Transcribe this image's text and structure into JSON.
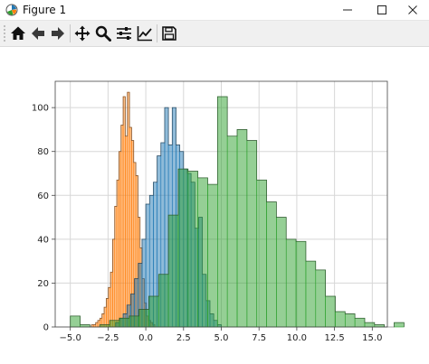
{
  "window": {
    "title": "Figure 1",
    "icons": {
      "app": "matplotlib-icon",
      "minimize": "minimize-icon",
      "maximize": "maximize-icon",
      "close": "close-icon"
    }
  },
  "toolbar": {
    "items": [
      {
        "name": "home-button",
        "icon": "home-icon"
      },
      {
        "name": "back-button",
        "icon": "arrow-left-icon"
      },
      {
        "name": "forward-button",
        "icon": "arrow-right-icon"
      },
      {
        "name": "pan-button",
        "icon": "move-icon"
      },
      {
        "name": "zoom-button",
        "icon": "search-icon"
      },
      {
        "name": "configure-subplots-button",
        "icon": "sliders-icon"
      },
      {
        "name": "edit-axis-button",
        "icon": "line-chart-icon"
      },
      {
        "name": "save-button",
        "icon": "floppy-disk-icon"
      }
    ]
  },
  "chart_data": {
    "type": "histogram",
    "xlim": [
      -6,
      16
    ],
    "ylim": [
      0,
      112
    ],
    "grid": true,
    "legend": "none",
    "xticks": [
      -5.0,
      -2.5,
      0.0,
      2.5,
      5.0,
      7.5,
      10.0,
      12.5,
      15.0
    ],
    "xtick_labels": [
      "−5.0",
      "−2.5",
      "0.0",
      "2.5",
      "5.0",
      "7.5",
      "10.0",
      "12.5",
      "15.0"
    ],
    "yticks": [
      0,
      20,
      40,
      60,
      80,
      100
    ],
    "ytick_labels": [
      "0",
      "20",
      "40",
      "60",
      "80",
      "100"
    ],
    "series": [
      {
        "color": "#ff7f0e",
        "start": -3.6,
        "width": 0.14,
        "counts": [
          1,
          1,
          2,
          3,
          4,
          6,
          9,
          13,
          18,
          25,
          40,
          55,
          67,
          80,
          92,
          105,
          87,
          107,
          91,
          85,
          75,
          69,
          50,
          36,
          22,
          11,
          5,
          3,
          2,
          1
        ]
      },
      {
        "color": "#1f77b4",
        "start": -2.0,
        "width": 0.25,
        "counts": [
          2,
          4,
          6,
          10,
          15,
          22,
          29,
          40,
          56,
          60,
          66,
          78,
          84,
          100,
          83,
          100,
          83,
          80,
          72,
          70,
          66,
          45,
          50,
          24,
          12,
          6,
          3,
          1
        ]
      },
      {
        "color": "#2ca02c",
        "start": -5.0,
        "width": 0.65,
        "counts": [
          5,
          1,
          0,
          1,
          3,
          4,
          5,
          8,
          14,
          24,
          51,
          72,
          71,
          68,
          65,
          105,
          87,
          90,
          85,
          67,
          57,
          50,
          40,
          39,
          30,
          26,
          14,
          7,
          6,
          4,
          2,
          1,
          0,
          2
        ]
      }
    ]
  }
}
